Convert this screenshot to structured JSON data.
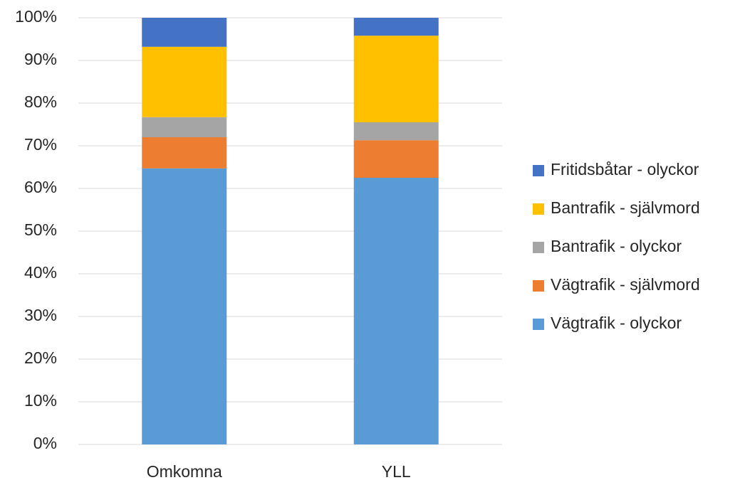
{
  "chart_data": {
    "type": "stacked_bar",
    "categories": [
      "Omkomna",
      "YLL"
    ],
    "series": [
      {
        "name": "Vägtrafik - olyckor",
        "color": "#5b9bd5",
        "values": [
          64.7,
          62.5
        ]
      },
      {
        "name": "Vägtrafik - självmord",
        "color": "#ed7d31",
        "values": [
          7.3,
          8.8
        ]
      },
      {
        "name": "Bantrafik - olyckor",
        "color": "#a5a5a5",
        "values": [
          4.7,
          4.2
        ]
      },
      {
        "name": "Bantrafik - självmord",
        "color": "#ffc000",
        "values": [
          16.5,
          20.3
        ]
      },
      {
        "name": "Fritidsbåtar - olyckor",
        "color": "#4472c4",
        "values": [
          6.8,
          4.2
        ]
      }
    ],
    "ylim": [
      0,
      100
    ],
    "yticks": [
      {
        "value": 0,
        "label": "0%"
      },
      {
        "value": 10,
        "label": "10%"
      },
      {
        "value": 20,
        "label": "20%"
      },
      {
        "value": 30,
        "label": "30%"
      },
      {
        "value": 40,
        "label": "40%"
      },
      {
        "value": 50,
        "label": "50%"
      },
      {
        "value": 60,
        "label": "60%"
      },
      {
        "value": 70,
        "label": "70%"
      },
      {
        "value": 80,
        "label": "80%"
      },
      {
        "value": 90,
        "label": "90%"
      },
      {
        "value": 100,
        "label": "100%"
      }
    ],
    "grid": true,
    "legend": "right"
  }
}
